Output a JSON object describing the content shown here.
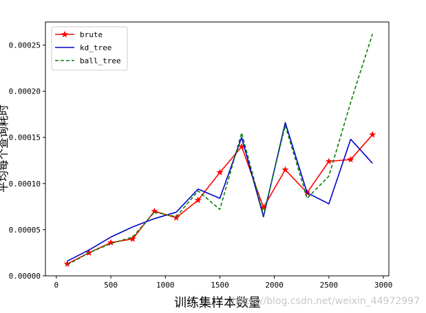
{
  "chart_data": {
    "type": "line",
    "title": "",
    "xlabel": "训练集样本数量",
    "ylabel": "平均每个查询耗时",
    "xlim": [
      -100,
      3050
    ],
    "ylim": [
      0,
      0.000275
    ],
    "xticks": [
      0,
      500,
      1000,
      1500,
      2000,
      2500,
      3000
    ],
    "yticks": [
      0.0,
      5e-05,
      0.0001,
      0.00015,
      0.0002,
      0.00025
    ],
    "xtick_labels": [
      "0",
      "500",
      "1000",
      "1500",
      "2000",
      "2500",
      "3000"
    ],
    "ytick_labels": [
      "0.00000",
      "0.00005",
      "0.00010",
      "0.00015",
      "0.00020",
      "0.00025"
    ],
    "legend_position": "upper-left",
    "grid": false,
    "x": [
      100,
      300,
      500,
      700,
      900,
      1100,
      1300,
      1500,
      1700,
      1900,
      2100,
      2300,
      2500,
      2700,
      2900
    ],
    "series": [
      {
        "name": "brute",
        "color": "#ff0000",
        "style": "solid",
        "marker": "star",
        "values": [
          1.3e-05,
          2.5e-05,
          3.6e-05,
          4e-05,
          7e-05,
          6.3e-05,
          8.2e-05,
          0.000112,
          0.00014,
          7.4e-05,
          0.000115,
          9e-05,
          0.000124,
          0.000126,
          0.000153
        ]
      },
      {
        "name": "kd_tree",
        "color": "#0000cc",
        "style": "solid",
        "marker": "none",
        "values": [
          1.6e-05,
          2.8e-05,
          4.2e-05,
          5.3e-05,
          6.2e-05,
          6.9e-05,
          9.4e-05,
          8.4e-05,
          0.00015,
          6.4e-05,
          0.000166,
          9e-05,
          7.8e-05,
          0.000148,
          0.000122
        ]
      },
      {
        "name": "ball_tree",
        "color": "#008000",
        "style": "dashed",
        "marker": "none",
        "values": [
          1.2e-05,
          2.5e-05,
          3.5e-05,
          4.2e-05,
          6.9e-05,
          6.4e-05,
          9.2e-05,
          7.2e-05,
          0.000155,
          6.6e-05,
          0.000163,
          8.4e-05,
          0.000108,
          0.000188,
          0.000262
        ]
      }
    ]
  },
  "watermark": "https://blog.csdn.net/weixin_44972997"
}
